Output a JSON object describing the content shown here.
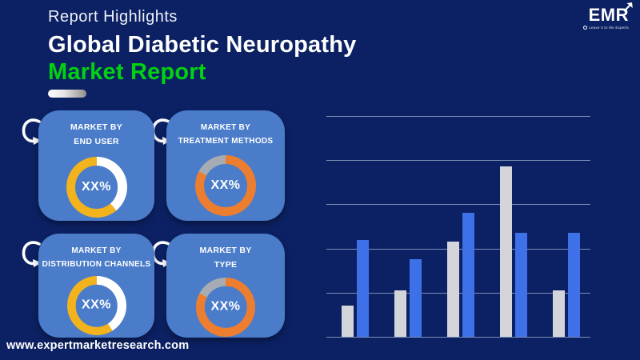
{
  "header": {
    "eyebrow": "Report Highlights",
    "title_line1": "Global Diabetic Neuropathy",
    "title_line2": "Market Report"
  },
  "logo": {
    "text": "EMR",
    "tagline": "Leave It to the Experts"
  },
  "cards": [
    {
      "line1": "MARKET BY",
      "line2": "END USER",
      "value_label": "XX%",
      "segments": [
        {
          "color": "#ffffff",
          "from": 0,
          "to": 140
        },
        {
          "color": "#f2b31d",
          "from": 140,
          "to": 360
        }
      ]
    },
    {
      "line1": "MARKET BY",
      "line2": "TREATMENT METHODS",
      "value_label": "XX%",
      "segments": [
        {
          "color": "#ee7e2f",
          "from": 0,
          "to": 298
        },
        {
          "color": "#a7abb3",
          "from": 298,
          "to": 360
        }
      ]
    },
    {
      "line1": "MARKET BY",
      "line2": "DISTRIBUTION CHANNELS",
      "value_label": "XX%",
      "segments": [
        {
          "color": "#ffffff",
          "from": 0,
          "to": 148
        },
        {
          "color": "#f2b31d",
          "from": 148,
          "to": 360
        }
      ]
    },
    {
      "line1": "MARKET BY",
      "line2": "TYPE",
      "value_label": "XX%",
      "segments": [
        {
          "color": "#ee7e2f",
          "from": 0,
          "to": 298
        },
        {
          "color": "#a7abb3",
          "from": 298,
          "to": 360
        }
      ]
    }
  ],
  "chart_data": {
    "type": "bar",
    "title": "",
    "xlabel": "",
    "ylabel": "",
    "categories": [
      "",
      "",
      "",
      "",
      ""
    ],
    "series": [
      {
        "name": "gray",
        "color": "#d3d5db",
        "values": [
          0.7,
          1.05,
          2.15,
          3.85,
          1.05
        ]
      },
      {
        "name": "blue",
        "color": "#3e70e8",
        "values": [
          2.2,
          1.75,
          2.8,
          2.35,
          2.35
        ]
      }
    ],
    "ylim": [
      0,
      5
    ],
    "grid": true,
    "gridline_step": 1,
    "legend": "none",
    "tick_labels_visible": false
  },
  "footer": {
    "url": "www.expertmarketresearch.com"
  },
  "colors": {
    "background": "#0c2163",
    "card": "#4a7cc9",
    "accent_green": "#00d211",
    "yellow": "#f2b31d",
    "orange": "#ee7e2f",
    "gray_segment": "#a7abb3",
    "bar_gray": "#d3d5db",
    "bar_blue": "#3e70e8",
    "gridline": "#8ea2c2"
  }
}
